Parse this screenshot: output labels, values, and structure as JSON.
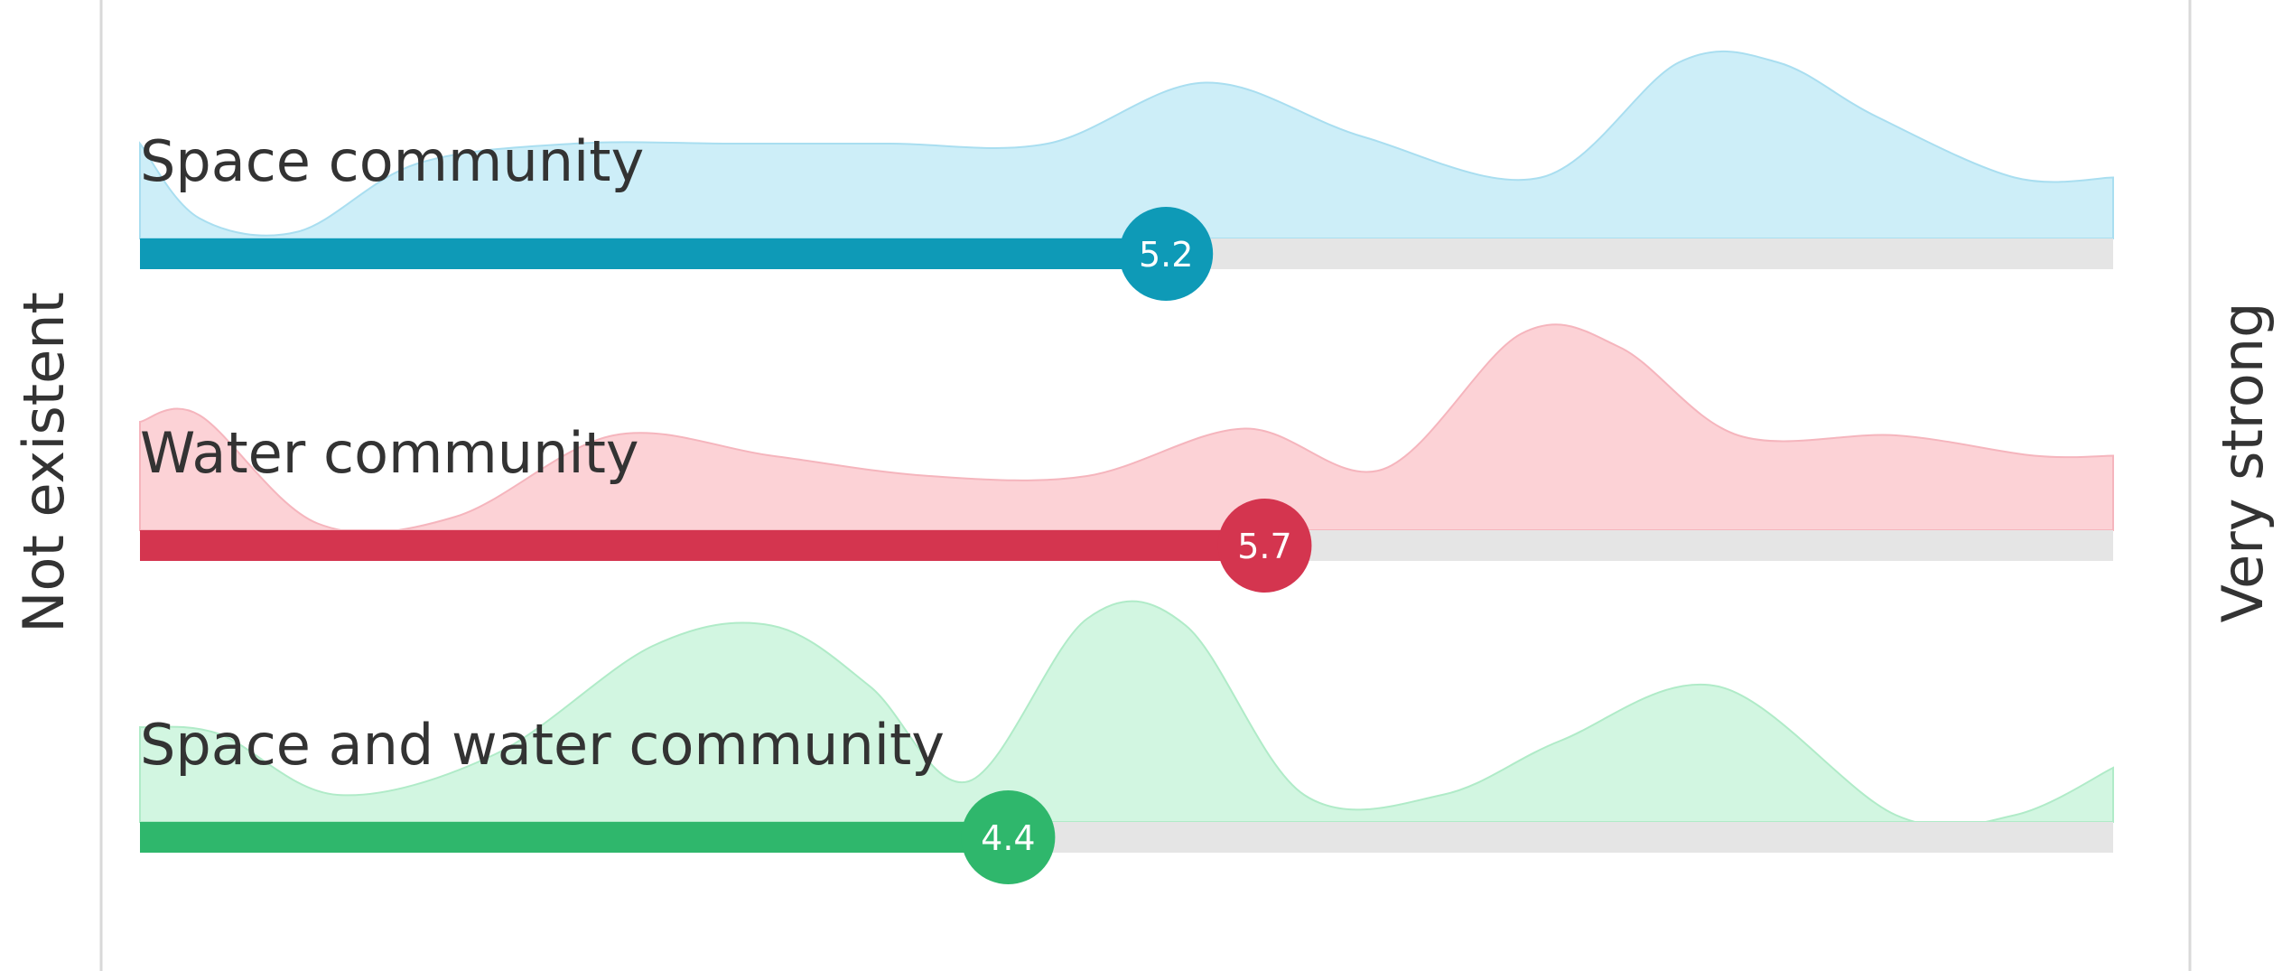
{
  "chart_data": {
    "type": "bar",
    "orientation": "horizontal",
    "axis": {
      "min": 0,
      "max": 10,
      "min_label": "Not existent",
      "max_label": "Very strong"
    },
    "series": [
      {
        "name": "Space community",
        "value": 5.2,
        "value_label": "5.2",
        "color": "#0e9ab7",
        "fill": "#cdeef8",
        "edge": "#a9def0",
        "distribution": {
          "x": [
            0,
            0.3,
            0.8,
            1.4,
            2.2,
            3.0,
            3.8,
            4.6,
            5.4,
            6.2,
            7.1,
            7.8,
            8.3,
            8.8,
            9.5,
            10
          ],
          "density": [
            0.7,
            0.15,
            0.05,
            0.55,
            0.7,
            0.7,
            0.7,
            0.7,
            1.15,
            0.75,
            0.45,
            1.3,
            1.3,
            0.9,
            0.45,
            0.45
          ]
        }
      },
      {
        "name": "Water community",
        "value": 5.7,
        "value_label": "5.7",
        "color": "#d4354f",
        "fill": "#fcd2d6",
        "edge": "#f5b5bd",
        "distribution": {
          "x": [
            0,
            0.3,
            0.9,
            1.6,
            2.4,
            3.2,
            4.0,
            4.8,
            5.6,
            6.3,
            7.0,
            7.5,
            8.1,
            8.9,
            9.6,
            10
          ],
          "density": [
            0.8,
            0.85,
            0.05,
            0.1,
            0.7,
            0.55,
            0.4,
            0.4,
            0.75,
            0.45,
            1.45,
            1.35,
            0.7,
            0.7,
            0.55,
            0.55
          ]
        }
      },
      {
        "name": "Space and water community",
        "value": 4.4,
        "value_label": "4.4",
        "color": "#2fb76c",
        "fill": "#d2f6e1",
        "edge": "#b0ebc8",
        "distribution": {
          "x": [
            0,
            0.4,
            1.0,
            1.8,
            2.6,
            3.2,
            3.7,
            4.2,
            4.8,
            5.3,
            5.9,
            6.6,
            7.2,
            8.0,
            8.9,
            9.5,
            10
          ],
          "density": [
            0.7,
            0.65,
            0.2,
            0.5,
            1.3,
            1.45,
            1.0,
            0.3,
            1.5,
            1.45,
            0.2,
            0.2,
            0.6,
            1.0,
            0.05,
            0.05,
            0.4
          ]
        }
      }
    ],
    "grid": false
  }
}
